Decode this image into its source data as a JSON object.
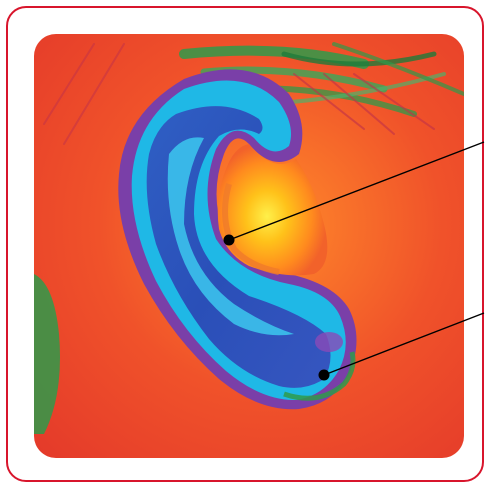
{
  "image": {
    "subject": "thermal-image-ear",
    "colors": {
      "frame_border": "#d8152c",
      "background_hot": "#e8402a",
      "skin_warm": "#f26a2a",
      "inner_ear_hottest": "#ffd21a",
      "ear_cool_cyan": "#1fb8e6",
      "ear_coldest_blue": "#2a4fb8",
      "ear_purple": "#7a3fa8",
      "hair_green": "#2f9a4a",
      "leader_line": "#000000"
    }
  },
  "callouts": [
    {
      "target": "inner-ear-warm-region",
      "label": ""
    },
    {
      "target": "earlobe-cool-region",
      "label": ""
    }
  ]
}
